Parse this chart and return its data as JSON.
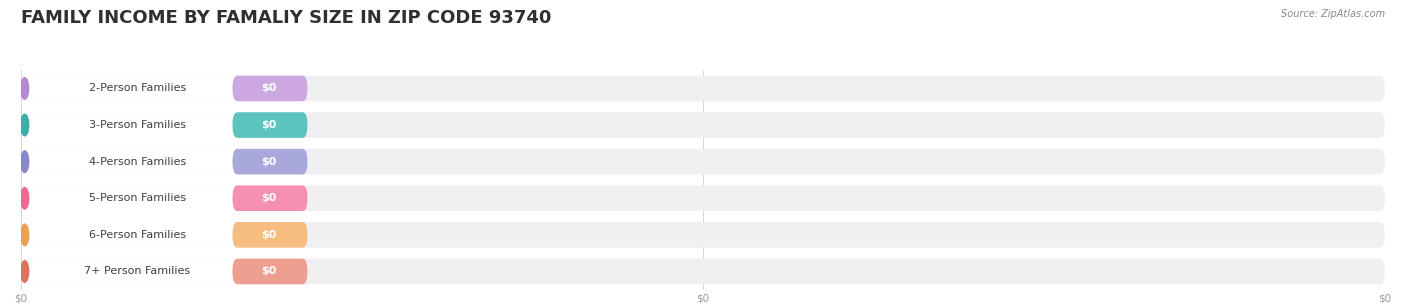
{
  "title": "FAMILY INCOME BY FAMALIY SIZE IN ZIP CODE 93740",
  "source": "Source: ZipAtlas.com",
  "categories": [
    "2-Person Families",
    "3-Person Families",
    "4-Person Families",
    "5-Person Families",
    "6-Person Families",
    "7+ Person Families"
  ],
  "values": [
    0,
    0,
    0,
    0,
    0,
    0
  ],
  "bar_colors": [
    "#cba8df",
    "#5cc4be",
    "#a8a8dc",
    "#f590b0",
    "#f5be80",
    "#eda090"
  ],
  "dot_colors": [
    "#b888d0",
    "#3ab0a8",
    "#8888c8",
    "#ee6890",
    "#eda050",
    "#e07060"
  ],
  "background_color": "#ffffff",
  "bar_bg_color": "#f0f0f2",
  "title_fontsize": 13,
  "label_fontsize": 8,
  "value_label": "$0",
  "figsize": [
    14.06,
    3.05
  ],
  "dpi": 100,
  "x_tick_positions": [
    0,
    50,
    100
  ],
  "x_tick_labels": [
    "$0",
    "$0",
    "$0"
  ]
}
